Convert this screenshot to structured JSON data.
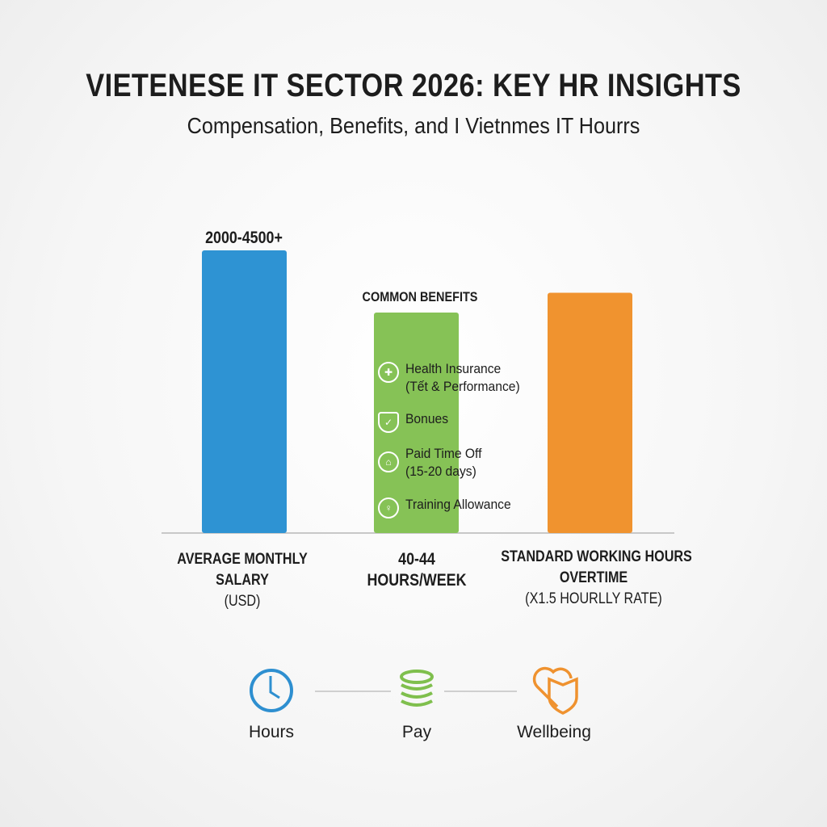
{
  "title": "VIETENESE IT SECTOR 2026: KEY HR INSIGHTS",
  "subtitle": "Compensation, Benefits, and I Vietnmes IT Hourrs",
  "chart_data": {
    "type": "bar",
    "categories": [
      "AVERAGE MONTHLY SALARY (USD)",
      "40-44 HOURS/WEEK",
      "STANDARD WORKING HOURS OVERTIME (X1.5 HOURLLY RATE)"
    ],
    "category_lines": [
      [
        "AVERAGE MONTHLY",
        "SALARY",
        "(USD)"
      ],
      [
        "40-44",
        "HOURS/WEEK"
      ],
      [
        "STANDARD WORKING HOURS",
        "OVERTIME",
        "(X1.5 HOURLLY RATE)"
      ]
    ],
    "relative_heights_percent": [
      100,
      78,
      85
    ],
    "colors": [
      "#2e93d3",
      "#86c256",
      "#f0932f"
    ],
    "data_labels": [
      "2000-4500+",
      "COMMON BENEFITS",
      ""
    ],
    "axes_visible": false,
    "grid": false
  },
  "benefits": [
    {
      "icon": "health-icon",
      "lines": [
        "Health Insurance",
        "(Tết & Performance)"
      ]
    },
    {
      "icon": "shield-icon",
      "lines": [
        "Bonues"
      ]
    },
    {
      "icon": "vacation-icon",
      "lines": [
        "Paid Time Off",
        "(15-20 days)"
      ]
    },
    {
      "icon": "training-icon",
      "lines": [
        "Training Allowance"
      ]
    }
  ],
  "footer": [
    {
      "icon": "clock-icon",
      "label": "Hours",
      "color": "#2e8fd0"
    },
    {
      "icon": "coin-stack-icon",
      "label": "Pay",
      "color": "#7fbf4d"
    },
    {
      "icon": "heart-shield-icon",
      "label": "Wellbeing",
      "color": "#ef922f"
    }
  ]
}
